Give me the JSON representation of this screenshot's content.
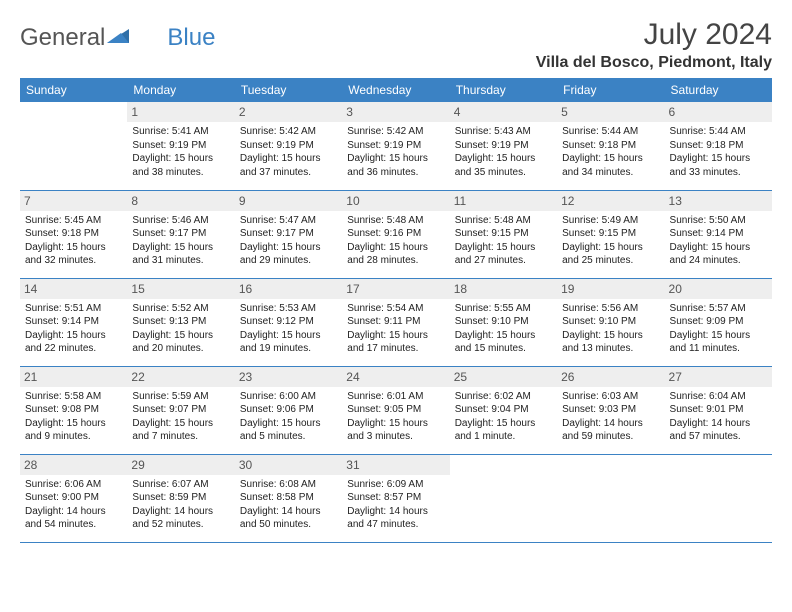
{
  "logo": {
    "text1": "General",
    "text2": "Blue"
  },
  "title": "July 2024",
  "location": "Villa del Bosco, Piedmont, Italy",
  "colors": {
    "header_bg": "#3b82c4",
    "header_text": "#ffffff",
    "daynum_bg": "#eeeeee",
    "text": "#222222"
  },
  "weekdays": [
    "Sunday",
    "Monday",
    "Tuesday",
    "Wednesday",
    "Thursday",
    "Friday",
    "Saturday"
  ],
  "weeks": [
    [
      {
        "day": "",
        "sunrise": "",
        "sunset": "",
        "daylight": ""
      },
      {
        "day": "1",
        "sunrise": "Sunrise: 5:41 AM",
        "sunset": "Sunset: 9:19 PM",
        "daylight": "Daylight: 15 hours and 38 minutes."
      },
      {
        "day": "2",
        "sunrise": "Sunrise: 5:42 AM",
        "sunset": "Sunset: 9:19 PM",
        "daylight": "Daylight: 15 hours and 37 minutes."
      },
      {
        "day": "3",
        "sunrise": "Sunrise: 5:42 AM",
        "sunset": "Sunset: 9:19 PM",
        "daylight": "Daylight: 15 hours and 36 minutes."
      },
      {
        "day": "4",
        "sunrise": "Sunrise: 5:43 AM",
        "sunset": "Sunset: 9:19 PM",
        "daylight": "Daylight: 15 hours and 35 minutes."
      },
      {
        "day": "5",
        "sunrise": "Sunrise: 5:44 AM",
        "sunset": "Sunset: 9:18 PM",
        "daylight": "Daylight: 15 hours and 34 minutes."
      },
      {
        "day": "6",
        "sunrise": "Sunrise: 5:44 AM",
        "sunset": "Sunset: 9:18 PM",
        "daylight": "Daylight: 15 hours and 33 minutes."
      }
    ],
    [
      {
        "day": "7",
        "sunrise": "Sunrise: 5:45 AM",
        "sunset": "Sunset: 9:18 PM",
        "daylight": "Daylight: 15 hours and 32 minutes."
      },
      {
        "day": "8",
        "sunrise": "Sunrise: 5:46 AM",
        "sunset": "Sunset: 9:17 PM",
        "daylight": "Daylight: 15 hours and 31 minutes."
      },
      {
        "day": "9",
        "sunrise": "Sunrise: 5:47 AM",
        "sunset": "Sunset: 9:17 PM",
        "daylight": "Daylight: 15 hours and 29 minutes."
      },
      {
        "day": "10",
        "sunrise": "Sunrise: 5:48 AM",
        "sunset": "Sunset: 9:16 PM",
        "daylight": "Daylight: 15 hours and 28 minutes."
      },
      {
        "day": "11",
        "sunrise": "Sunrise: 5:48 AM",
        "sunset": "Sunset: 9:15 PM",
        "daylight": "Daylight: 15 hours and 27 minutes."
      },
      {
        "day": "12",
        "sunrise": "Sunrise: 5:49 AM",
        "sunset": "Sunset: 9:15 PM",
        "daylight": "Daylight: 15 hours and 25 minutes."
      },
      {
        "day": "13",
        "sunrise": "Sunrise: 5:50 AM",
        "sunset": "Sunset: 9:14 PM",
        "daylight": "Daylight: 15 hours and 24 minutes."
      }
    ],
    [
      {
        "day": "14",
        "sunrise": "Sunrise: 5:51 AM",
        "sunset": "Sunset: 9:14 PM",
        "daylight": "Daylight: 15 hours and 22 minutes."
      },
      {
        "day": "15",
        "sunrise": "Sunrise: 5:52 AM",
        "sunset": "Sunset: 9:13 PM",
        "daylight": "Daylight: 15 hours and 20 minutes."
      },
      {
        "day": "16",
        "sunrise": "Sunrise: 5:53 AM",
        "sunset": "Sunset: 9:12 PM",
        "daylight": "Daylight: 15 hours and 19 minutes."
      },
      {
        "day": "17",
        "sunrise": "Sunrise: 5:54 AM",
        "sunset": "Sunset: 9:11 PM",
        "daylight": "Daylight: 15 hours and 17 minutes."
      },
      {
        "day": "18",
        "sunrise": "Sunrise: 5:55 AM",
        "sunset": "Sunset: 9:10 PM",
        "daylight": "Daylight: 15 hours and 15 minutes."
      },
      {
        "day": "19",
        "sunrise": "Sunrise: 5:56 AM",
        "sunset": "Sunset: 9:10 PM",
        "daylight": "Daylight: 15 hours and 13 minutes."
      },
      {
        "day": "20",
        "sunrise": "Sunrise: 5:57 AM",
        "sunset": "Sunset: 9:09 PM",
        "daylight": "Daylight: 15 hours and 11 minutes."
      }
    ],
    [
      {
        "day": "21",
        "sunrise": "Sunrise: 5:58 AM",
        "sunset": "Sunset: 9:08 PM",
        "daylight": "Daylight: 15 hours and 9 minutes."
      },
      {
        "day": "22",
        "sunrise": "Sunrise: 5:59 AM",
        "sunset": "Sunset: 9:07 PM",
        "daylight": "Daylight: 15 hours and 7 minutes."
      },
      {
        "day": "23",
        "sunrise": "Sunrise: 6:00 AM",
        "sunset": "Sunset: 9:06 PM",
        "daylight": "Daylight: 15 hours and 5 minutes."
      },
      {
        "day": "24",
        "sunrise": "Sunrise: 6:01 AM",
        "sunset": "Sunset: 9:05 PM",
        "daylight": "Daylight: 15 hours and 3 minutes."
      },
      {
        "day": "25",
        "sunrise": "Sunrise: 6:02 AM",
        "sunset": "Sunset: 9:04 PM",
        "daylight": "Daylight: 15 hours and 1 minute."
      },
      {
        "day": "26",
        "sunrise": "Sunrise: 6:03 AM",
        "sunset": "Sunset: 9:03 PM",
        "daylight": "Daylight: 14 hours and 59 minutes."
      },
      {
        "day": "27",
        "sunrise": "Sunrise: 6:04 AM",
        "sunset": "Sunset: 9:01 PM",
        "daylight": "Daylight: 14 hours and 57 minutes."
      }
    ],
    [
      {
        "day": "28",
        "sunrise": "Sunrise: 6:06 AM",
        "sunset": "Sunset: 9:00 PM",
        "daylight": "Daylight: 14 hours and 54 minutes."
      },
      {
        "day": "29",
        "sunrise": "Sunrise: 6:07 AM",
        "sunset": "Sunset: 8:59 PM",
        "daylight": "Daylight: 14 hours and 52 minutes."
      },
      {
        "day": "30",
        "sunrise": "Sunrise: 6:08 AM",
        "sunset": "Sunset: 8:58 PM",
        "daylight": "Daylight: 14 hours and 50 minutes."
      },
      {
        "day": "31",
        "sunrise": "Sunrise: 6:09 AM",
        "sunset": "Sunset: 8:57 PM",
        "daylight": "Daylight: 14 hours and 47 minutes."
      },
      {
        "day": "",
        "sunrise": "",
        "sunset": "",
        "daylight": ""
      },
      {
        "day": "",
        "sunrise": "",
        "sunset": "",
        "daylight": ""
      },
      {
        "day": "",
        "sunrise": "",
        "sunset": "",
        "daylight": ""
      }
    ]
  ]
}
